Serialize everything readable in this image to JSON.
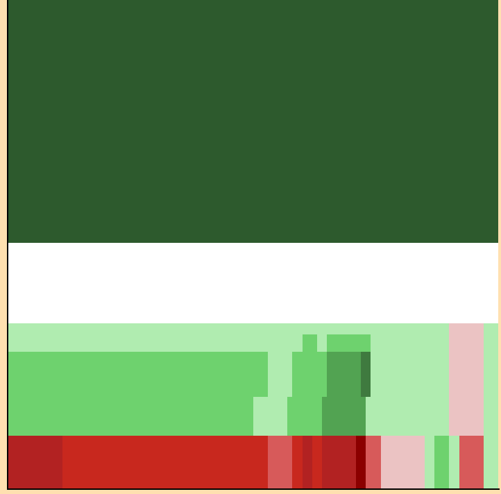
{
  "chart_data": {
    "type": "heatmap",
    "title": "",
    "xlabel": "",
    "ylabel": "",
    "grid": false,
    "legend": "none",
    "palette": {
      "dark_green": "#2d5a2d",
      "mid_dark_green": "#3f7a3f",
      "green": "#52a352",
      "medium_green": "#6ed26e",
      "light_green": "#b0ecb0",
      "pale_pink": "#ebc3c3",
      "salmon": "#d75a5a",
      "red": "#c8281e",
      "crimson": "#b22222",
      "dark_red": "#8b0000",
      "white": "#ffffff"
    },
    "rows": [
      {
        "name": "",
        "cells": [
          {
            "w": 1.0,
            "c": "dark_green"
          }
        ]
      },
      {
        "name": "",
        "cells": [
          {
            "w": 1.0,
            "c": "white"
          }
        ]
      },
      {
        "name": "",
        "cells": [
          {
            "w": 0.9,
            "c": "light_green"
          },
          {
            "w": 0.07,
            "c": "pale_pink"
          },
          {
            "w": 0.03,
            "c": "light_green"
          }
        ]
      },
      {
        "name": "",
        "cells": [
          {
            "w": 0.6,
            "c": "light_green"
          },
          {
            "w": 0.03,
            "c": "medium_green"
          },
          {
            "w": 0.02,
            "c": "light_green"
          },
          {
            "w": 0.09,
            "c": "medium_green"
          },
          {
            "w": 0.16,
            "c": "light_green"
          },
          {
            "w": 0.07,
            "c": "pale_pink"
          },
          {
            "w": 0.03,
            "c": "light_green"
          }
        ]
      },
      {
        "name": "",
        "cells": [
          {
            "w": 0.53,
            "c": "medium_green"
          },
          {
            "w": 0.05,
            "c": "light_green"
          },
          {
            "w": 0.07,
            "c": "medium_green"
          },
          {
            "w": 0.07,
            "c": "green"
          },
          {
            "w": 0.02,
            "c": "mid_dark_green"
          },
          {
            "w": 0.16,
            "c": "light_green"
          },
          {
            "w": 0.07,
            "c": "pale_pink"
          },
          {
            "w": 0.03,
            "c": "light_green"
          }
        ]
      },
      {
        "name": "",
        "cells": [
          {
            "w": 0.5,
            "c": "medium_green"
          },
          {
            "w": 0.07,
            "c": "light_green"
          },
          {
            "w": 0.07,
            "c": "medium_green"
          },
          {
            "w": 0.09,
            "c": "green"
          },
          {
            "w": 0.17,
            "c": "light_green"
          },
          {
            "w": 0.07,
            "c": "pale_pink"
          },
          {
            "w": 0.03,
            "c": "light_green"
          }
        ]
      },
      {
        "name": "",
        "cells": [
          {
            "w": 0.11,
            "c": "crimson"
          },
          {
            "w": 0.42,
            "c": "red"
          },
          {
            "w": 0.05,
            "c": "salmon"
          },
          {
            "w": 0.02,
            "c": "red"
          },
          {
            "w": 0.02,
            "c": "crimson"
          },
          {
            "w": 0.02,
            "c": "red"
          },
          {
            "w": 0.07,
            "c": "crimson"
          },
          {
            "w": 0.02,
            "c": "dark_red"
          },
          {
            "w": 0.03,
            "c": "salmon"
          },
          {
            "w": 0.09,
            "c": "pale_pink"
          },
          {
            "w": 0.02,
            "c": "light_green"
          },
          {
            "w": 0.03,
            "c": "medium_green"
          },
          {
            "w": 0.02,
            "c": "light_green"
          },
          {
            "w": 0.05,
            "c": "salmon"
          },
          {
            "w": 0.03,
            "c": "light_green"
          }
        ]
      }
    ]
  }
}
